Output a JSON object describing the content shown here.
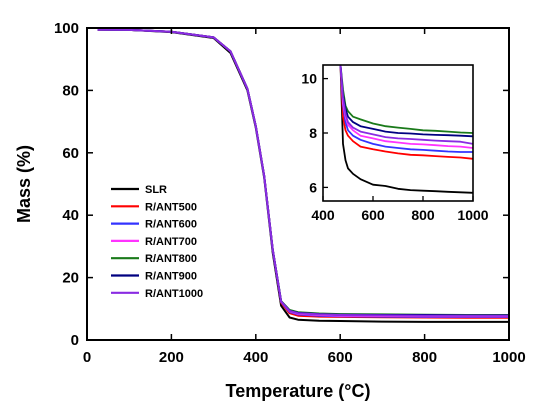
{
  "chart_data": [
    {
      "type": "line",
      "xlabel": "Temperature (°C)",
      "ylabel": "Mass (%)",
      "xlim": [
        0,
        1000
      ],
      "ylim": [
        0,
        100
      ],
      "xticks": [
        0,
        200,
        400,
        600,
        800,
        1000
      ],
      "yticks": [
        0,
        20,
        40,
        60,
        80,
        100
      ],
      "grid": false,
      "legend_position": "center-left",
      "x": [
        25,
        100,
        200,
        300,
        340,
        380,
        400,
        420,
        440,
        460,
        480,
        500,
        550,
        600,
        700,
        800,
        900,
        1000
      ],
      "series": [
        {
          "name": "SLR",
          "color": "#000000",
          "values": [
            99.5,
            99.4,
            98.7,
            96.8,
            92,
            80,
            68,
            52,
            28,
            11,
            7.2,
            6.5,
            6.2,
            6.1,
            5.9,
            5.8,
            5.8,
            5.8
          ]
        },
        {
          "name": "R/ANT500",
          "color": "#ff0000",
          "values": [
            99.5,
            99.4,
            98.8,
            97,
            92.5,
            80.5,
            68.5,
            52.5,
            29,
            12,
            8.6,
            7.8,
            7.5,
            7.4,
            7.3,
            7.2,
            7.1,
            7.1
          ]
        },
        {
          "name": "R/ANT600",
          "color": "#3333ff",
          "values": [
            99.5,
            99.4,
            98.8,
            97,
            92.5,
            80.5,
            68.5,
            52.5,
            29,
            12.2,
            9,
            8.2,
            7.8,
            7.6,
            7.5,
            7.4,
            7.4,
            7.4
          ]
        },
        {
          "name": "R/ANT700",
          "color": "#ff33ff",
          "values": [
            99.5,
            99.4,
            98.8,
            97,
            92.5,
            80.5,
            68.5,
            52.5,
            29,
            12.3,
            9.2,
            8.4,
            8,
            7.8,
            7.7,
            7.6,
            7.6,
            7.6
          ]
        },
        {
          "name": "R/ANT800",
          "color": "#1a7a1a",
          "values": [
            99.5,
            99.4,
            98.8,
            97,
            92.5,
            80.5,
            68.5,
            52.5,
            29,
            12.5,
            9.6,
            8.9,
            8.5,
            8.3,
            8.2,
            8.1,
            8,
            8
          ]
        },
        {
          "name": "R/ANT900",
          "color": "#000080",
          "values": [
            99.5,
            99.4,
            98.8,
            97,
            92.5,
            80.5,
            68.5,
            52.5,
            29,
            12.4,
            9.4,
            8.7,
            8.3,
            8.1,
            8,
            8,
            7.9,
            7.9
          ]
        },
        {
          "name": "R/ANT1000",
          "color": "#8a2be2",
          "values": [
            99.5,
            99.4,
            98.8,
            97,
            92.5,
            80.5,
            68.5,
            52.5,
            29,
            12.3,
            9.3,
            8.6,
            8.2,
            8,
            7.9,
            7.8,
            7.8,
            7.8
          ]
        }
      ]
    },
    {
      "type": "line",
      "xlim": [
        400,
        1000
      ],
      "ylim": [
        5.5,
        10.5
      ],
      "xticks": [
        400,
        600,
        800,
        1000
      ],
      "yticks": [
        6,
        8,
        10
      ],
      "grid": false,
      "x": [
        470,
        480,
        490,
        500,
        520,
        550,
        600,
        650,
        700,
        750,
        800,
        850,
        900,
        950,
        1000
      ],
      "series": [
        {
          "name": "SLR",
          "color": "#000000",
          "values": [
            10.5,
            7.6,
            7.0,
            6.7,
            6.5,
            6.3,
            6.1,
            6.05,
            5.95,
            5.9,
            5.88,
            5.86,
            5.84,
            5.82,
            5.8
          ]
        },
        {
          "name": "R/ANT500",
          "color": "#ff0000",
          "values": [
            10.5,
            8.6,
            8.1,
            7.9,
            7.7,
            7.5,
            7.4,
            7.32,
            7.25,
            7.2,
            7.18,
            7.15,
            7.12,
            7.1,
            7.05
          ]
        },
        {
          "name": "R/ANT600",
          "color": "#3333ff",
          "values": [
            10.5,
            9.0,
            8.4,
            8.1,
            7.9,
            7.75,
            7.6,
            7.5,
            7.45,
            7.4,
            7.38,
            7.35,
            7.32,
            7.3,
            7.3
          ]
        },
        {
          "name": "R/ANT700",
          "color": "#ff33ff",
          "values": [
            10.5,
            9.1,
            8.6,
            8.3,
            8.1,
            7.9,
            7.8,
            7.7,
            7.65,
            7.6,
            7.58,
            7.55,
            7.52,
            7.5,
            7.45
          ]
        },
        {
          "name": "R/ANT800",
          "color": "#1a7a1a",
          "values": [
            10.5,
            9.6,
            9.0,
            8.8,
            8.6,
            8.5,
            8.35,
            8.25,
            8.2,
            8.15,
            8.1,
            8.08,
            8.05,
            8.02,
            8.0
          ]
        },
        {
          "name": "R/ANT900",
          "color": "#000080",
          "values": [
            10.5,
            9.4,
            8.9,
            8.6,
            8.4,
            8.25,
            8.15,
            8.05,
            8.0,
            7.98,
            7.95,
            7.93,
            7.92,
            7.9,
            7.88
          ]
        },
        {
          "name": "R/ANT1000",
          "color": "#8a2be2",
          "values": [
            10.5,
            9.3,
            8.7,
            8.4,
            8.2,
            8.05,
            7.95,
            7.85,
            7.8,
            7.78,
            7.75,
            7.72,
            7.7,
            7.68,
            7.6
          ]
        }
      ]
    }
  ]
}
